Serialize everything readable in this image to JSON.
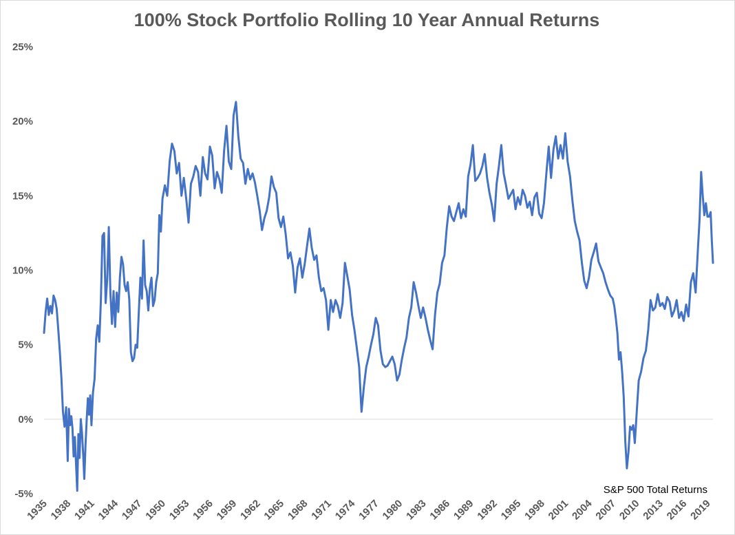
{
  "chart_data": {
    "type": "line",
    "title": "100% Stock Portfolio Rolling 10 Year Annual Returns",
    "annotation": "S&P 500 Total Returns",
    "xlabel": "",
    "ylabel": "",
    "xlim": [
      1935,
      2019.7
    ],
    "ylim": [
      -5,
      25
    ],
    "y_ticks": [
      -5,
      0,
      5,
      10,
      15,
      20,
      25
    ],
    "y_tick_labels": [
      "-5%",
      "0%",
      "5%",
      "10%",
      "15%",
      "20%",
      "25%"
    ],
    "x_ticks": [
      1935,
      1938,
      1941,
      1944,
      1947,
      1950,
      1953,
      1956,
      1959,
      1962,
      1965,
      1968,
      1971,
      1974,
      1977,
      1980,
      1983,
      1986,
      1989,
      1992,
      1995,
      1998,
      2001,
      2004,
      2007,
      2010,
      2013,
      2016,
      2019
    ],
    "x_tick_labels": [
      "1935",
      "1938",
      "1941",
      "1944",
      "1947",
      "1950",
      "1953",
      "1956",
      "1959",
      "1962",
      "1965",
      "1968",
      "1971",
      "1974",
      "1977",
      "1980",
      "1983",
      "1986",
      "1989",
      "1992",
      "1995",
      "1998",
      "2001",
      "2004",
      "2007",
      "2010",
      "2013",
      "2016",
      "2019"
    ],
    "grid": false,
    "zero_line": true,
    "line_color": "#4472C4",
    "series": [
      {
        "name": "",
        "x": [
          1935.0,
          1935.2,
          1935.4,
          1935.6,
          1935.8,
          1936.0,
          1936.2,
          1936.4,
          1936.6,
          1936.8,
          1937.0,
          1937.2,
          1937.4,
          1937.6,
          1937.8,
          1938.0,
          1938.15,
          1938.3,
          1938.45,
          1938.6,
          1938.75,
          1938.9,
          1939.05,
          1939.2,
          1939.35,
          1939.5,
          1939.65,
          1939.8,
          1939.95,
          1940.1,
          1940.25,
          1940.4,
          1940.55,
          1940.7,
          1940.85,
          1941.0,
          1941.2,
          1941.4,
          1941.6,
          1941.8,
          1942.0,
          1942.2,
          1942.4,
          1942.6,
          1942.8,
          1943.0,
          1943.2,
          1943.4,
          1943.6,
          1943.8,
          1944.0,
          1944.2,
          1944.4,
          1944.6,
          1944.8,
          1945.0,
          1945.2,
          1945.4,
          1945.6,
          1945.8,
          1946.0,
          1946.2,
          1946.4,
          1946.6,
          1946.8,
          1947.0,
          1947.2,
          1947.4,
          1947.6,
          1947.8,
          1948.0,
          1948.2,
          1948.4,
          1948.6,
          1948.8,
          1949.0,
          1949.2,
          1949.4,
          1949.6,
          1949.8,
          1950.0,
          1950.3,
          1950.6,
          1950.9,
          1951.2,
          1951.5,
          1951.8,
          1952.1,
          1952.4,
          1952.7,
          1953.0,
          1953.3,
          1953.6,
          1953.9,
          1954.2,
          1954.5,
          1954.8,
          1955.1,
          1955.4,
          1955.7,
          1956.0,
          1956.3,
          1956.6,
          1956.9,
          1957.2,
          1957.5,
          1957.8,
          1958.1,
          1958.4,
          1958.7,
          1959.0,
          1959.3,
          1959.6,
          1959.9,
          1960.2,
          1960.5,
          1960.8,
          1961.1,
          1961.4,
          1961.7,
          1962.0,
          1962.3,
          1962.6,
          1962.9,
          1963.2,
          1963.5,
          1963.8,
          1964.1,
          1964.4,
          1964.7,
          1965.0,
          1965.3,
          1965.6,
          1965.9,
          1966.2,
          1966.5,
          1966.8,
          1967.1,
          1967.4,
          1967.7,
          1968.0,
          1968.3,
          1968.6,
          1968.9,
          1969.2,
          1969.5,
          1969.8,
          1970.1,
          1970.4,
          1970.7,
          1971.0,
          1971.3,
          1971.6,
          1971.9,
          1972.2,
          1972.5,
          1972.8,
          1973.1,
          1973.4,
          1973.7,
          1974.0,
          1974.3,
          1974.6,
          1974.9,
          1975.2,
          1975.5,
          1975.8,
          1976.1,
          1976.4,
          1976.7,
          1977.0,
          1977.3,
          1977.6,
          1977.9,
          1978.2,
          1978.5,
          1978.8,
          1979.1,
          1979.4,
          1979.7,
          1980.0,
          1980.3,
          1980.6,
          1980.9,
          1981.2,
          1981.5,
          1981.8,
          1982.1,
          1982.4,
          1982.7,
          1983.0,
          1983.3,
          1983.6,
          1983.9,
          1984.2,
          1984.5,
          1984.8,
          1985.1,
          1985.4,
          1985.7,
          1986.0,
          1986.3,
          1986.6,
          1986.9,
          1987.2,
          1987.5,
          1987.8,
          1988.1,
          1988.4,
          1988.7,
          1989.0,
          1989.3,
          1989.6,
          1989.9,
          1990.2,
          1990.5,
          1990.8,
          1991.1,
          1991.4,
          1991.7,
          1992.0,
          1992.3,
          1992.6,
          1992.9,
          1993.2,
          1993.5,
          1993.8,
          1994.1,
          1994.4,
          1994.7,
          1995.0,
          1995.3,
          1995.6,
          1995.9,
          1996.2,
          1996.5,
          1996.8,
          1997.1,
          1997.4,
          1997.7,
          1998.0,
          1998.3,
          1998.6,
          1998.9,
          1999.2,
          1999.5,
          1999.8,
          2000.1,
          2000.4,
          2000.7,
          2001.0,
          2001.3,
          2001.6,
          2001.9,
          2002.2,
          2002.5,
          2002.8,
          2003.1,
          2003.4,
          2003.7,
          2004.0,
          2004.3,
          2004.6,
          2004.9,
          2005.2,
          2005.5,
          2005.8,
          2006.1,
          2006.4,
          2006.7,
          2007.0,
          2007.2,
          2007.4,
          2007.6,
          2007.8,
          2008.0,
          2008.2,
          2008.4,
          2008.6,
          2008.8,
          2009.0,
          2009.2,
          2009.4,
          2009.6,
          2009.8,
          2010.0,
          2010.3,
          2010.6,
          2010.9,
          2011.2,
          2011.5,
          2011.8,
          2012.1,
          2012.4,
          2012.7,
          2013.0,
          2013.3,
          2013.6,
          2013.9,
          2014.2,
          2014.5,
          2014.8,
          2015.1,
          2015.4,
          2015.7,
          2016.0,
          2016.3,
          2016.6,
          2016.9,
          2017.2,
          2017.5,
          2017.8,
          2018.0,
          2018.2,
          2018.4,
          2018.6,
          2018.8,
          2019.0,
          2019.2,
          2019.4,
          2019.55,
          2019.7
        ],
        "y": [
          5.8,
          7.2,
          8.1,
          7.0,
          7.6,
          7.1,
          8.3,
          8.0,
          7.4,
          6.0,
          4.5,
          2.8,
          0.5,
          -0.5,
          0.8,
          -2.8,
          0.7,
          -0.4,
          0.2,
          -0.6,
          -2.5,
          -1.2,
          -3.0,
          -4.8,
          -1.0,
          -2.6,
          0.0,
          -0.9,
          -2.3,
          -4.0,
          -1.8,
          0.0,
          1.4,
          0.3,
          1.6,
          -0.4,
          1.8,
          2.7,
          5.4,
          6.3,
          5.2,
          8.0,
          12.3,
          12.5,
          7.8,
          9.4,
          12.9,
          8.5,
          6.4,
          8.6,
          6.2,
          8.5,
          7.2,
          9.5,
          10.9,
          10.4,
          9.0,
          8.6,
          9.2,
          8.0,
          4.5,
          3.9,
          4.1,
          5.0,
          4.8,
          7.2,
          9.5,
          8.1,
          12.0,
          9.0,
          8.6,
          7.3,
          8.8,
          9.5,
          7.6,
          8.0,
          9.2,
          9.8,
          13.7,
          12.6,
          14.8,
          15.7,
          15.0,
          17.3,
          18.5,
          18.0,
          16.5,
          17.2,
          15.0,
          16.2,
          14.8,
          13.2,
          15.8,
          16.3,
          17.0,
          16.6,
          15.0,
          17.6,
          16.5,
          16.1,
          18.3,
          17.7,
          15.5,
          16.6,
          16.1,
          15.2,
          18.0,
          19.7,
          17.3,
          16.8,
          20.4,
          21.3,
          19.0,
          17.5,
          17.2,
          15.8,
          16.8,
          16.1,
          16.5,
          15.9,
          15.0,
          14.0,
          12.7,
          13.5,
          14.0,
          14.9,
          16.3,
          15.6,
          15.2,
          13.5,
          12.9,
          13.6,
          12.4,
          10.8,
          11.2,
          10.3,
          8.5,
          10.2,
          10.8,
          9.5,
          10.4,
          11.6,
          12.8,
          11.5,
          10.7,
          11.0,
          9.5,
          8.6,
          8.8,
          8.0,
          6.0,
          8.0,
          7.2,
          8.0,
          7.6,
          6.8,
          7.8,
          10.5,
          9.6,
          8.7,
          7.0,
          6.0,
          4.8,
          3.5,
          0.5,
          2.2,
          3.5,
          4.2,
          5.0,
          5.7,
          6.8,
          6.3,
          4.6,
          3.7,
          3.5,
          3.6,
          3.9,
          4.2,
          3.7,
          2.6,
          3.0,
          4.0,
          4.8,
          5.5,
          6.8,
          7.5,
          9.2,
          8.5,
          7.6,
          6.8,
          7.5,
          6.8,
          6.0,
          5.3,
          4.7,
          7.0,
          8.5,
          9.1,
          10.5,
          11.0,
          12.9,
          14.3,
          13.6,
          13.3,
          13.9,
          14.5,
          13.5,
          14.1,
          13.6,
          16.3,
          17.1,
          18.4,
          16.0,
          16.2,
          16.5,
          17.0,
          17.8,
          16.2,
          15.2,
          14.4,
          13.3,
          15.8,
          17.0,
          18.4,
          16.5,
          15.7,
          14.8,
          15.1,
          15.4,
          14.1,
          14.9,
          14.4,
          15.4,
          15.0,
          14.2,
          14.6,
          13.7,
          14.9,
          15.2,
          13.8,
          13.5,
          14.5,
          16.5,
          18.3,
          16.2,
          18.1,
          19.0,
          17.5,
          18.4,
          17.5,
          19.2,
          17.3,
          16.3,
          14.7,
          13.3,
          12.6,
          12.0,
          10.5,
          9.3,
          8.8,
          9.5,
          10.7,
          11.2,
          11.8,
          10.6,
          10.2,
          9.8,
          9.2,
          8.7,
          8.3,
          8.1,
          7.6,
          6.8,
          5.8,
          4.0,
          4.5,
          3.2,
          1.5,
          -1.5,
          -3.3,
          -2.2,
          -0.5,
          -0.7,
          -0.4,
          -1.6,
          0.1,
          2.6,
          3.2,
          4.1,
          4.6,
          6.0,
          8.0,
          7.3,
          7.5,
          8.4,
          7.6,
          7.8,
          7.4,
          8.2,
          7.9,
          6.9,
          7.3,
          8.0,
          6.8,
          7.2,
          6.6,
          7.7,
          6.9,
          9.2,
          9.8,
          8.5,
          11.5,
          13.4,
          16.6,
          15.0,
          13.7,
          14.5,
          13.6,
          13.6,
          13.9,
          12.0,
          10.5
        ]
      }
    ]
  }
}
